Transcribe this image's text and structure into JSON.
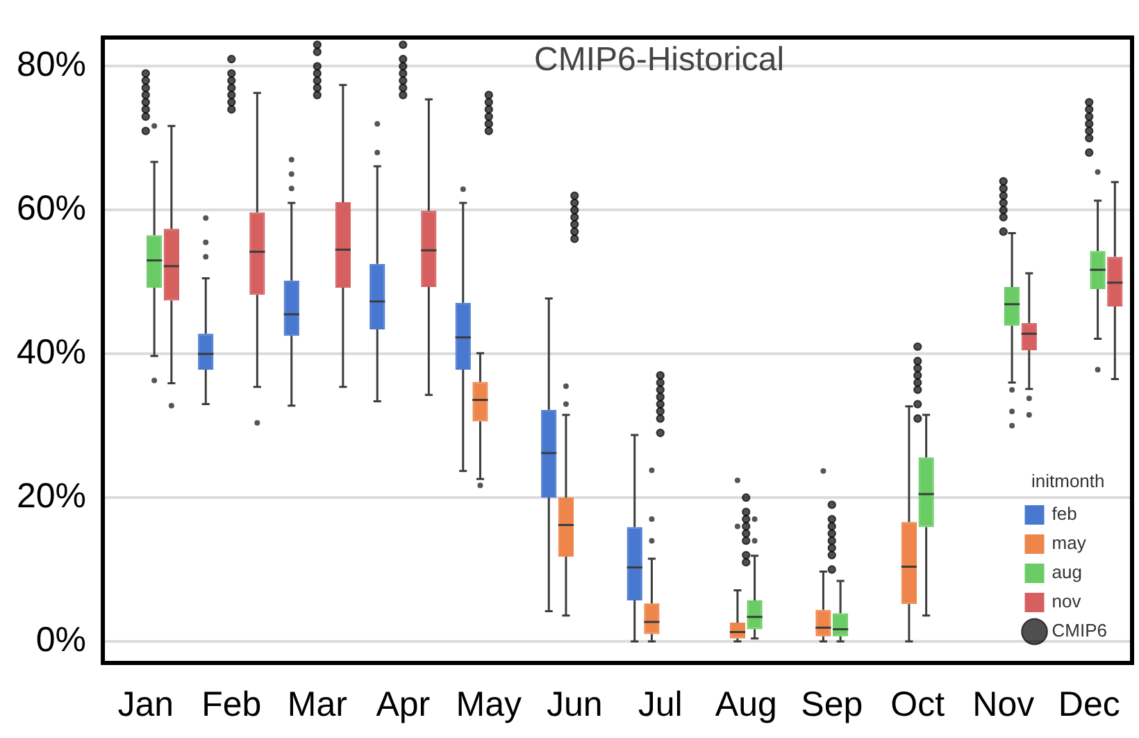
{
  "chart_data": {
    "type": "box",
    "title": "CMIP6-Historical",
    "legend_title": "initmonth",
    "legend": "bottom right",
    "grid": "y",
    "categories": [
      "Jan",
      "Feb",
      "Mar",
      "Apr",
      "May",
      "Jun",
      "Jul",
      "Aug",
      "Sep",
      "Oct",
      "Nov",
      "Dec"
    ],
    "ylim": [
      -3,
      84
    ],
    "yticks": [
      {
        "value": 0,
        "label": "0%"
      },
      {
        "value": 20,
        "label": "20%"
      },
      {
        "value": 40,
        "label": "40%"
      },
      {
        "value": 60,
        "label": "60%"
      },
      {
        "value": 80,
        "label": "80%"
      }
    ],
    "series": [
      {
        "name": "feb",
        "color": "#4878d0",
        "boxes": [
          null,
          {
            "low": 33,
            "q1": 37.8,
            "median": 40,
            "q3": 42.8,
            "high": 50.5,
            "outliers": [
              53.5,
              55.5,
              58.9
            ]
          },
          {
            "low": 32.8,
            "q1": 42.5,
            "median": 45.5,
            "q3": 50.2,
            "high": 61,
            "outliers": [
              63,
              65,
              67
            ]
          },
          {
            "low": 33.4,
            "q1": 43.4,
            "median": 47.3,
            "q3": 52.5,
            "high": 66.1,
            "outliers": [
              68,
              72
            ]
          },
          {
            "low": 23.7,
            "q1": 37.8,
            "median": 42.3,
            "q3": 47.1,
            "high": 61,
            "outliers": [
              62.9
            ]
          },
          {
            "low": 4.2,
            "q1": 20,
            "median": 26.2,
            "q3": 32.2,
            "high": 47.7
          },
          {
            "low": 0,
            "q1": 5.7,
            "median": 10.3,
            "q3": 15.9,
            "high": 28.7
          },
          null,
          null,
          null,
          null,
          null
        ]
      },
      {
        "name": "may",
        "color": "#ee854a",
        "boxes": [
          null,
          null,
          null,
          null,
          {
            "low": 22.6,
            "q1": 30.6,
            "median": 33.6,
            "q3": 36.1,
            "high": 40.1,
            "outliers": [
              21.7
            ]
          },
          {
            "low": 3.6,
            "q1": 11.8,
            "median": 16.2,
            "q3": 20,
            "high": 31.5,
            "outliers": [
              33,
              35.5
            ]
          },
          {
            "low": 0,
            "q1": 1,
            "median": 2.7,
            "q3": 5.3,
            "high": 11.5,
            "outliers": [
              14,
              17,
              23.8
            ]
          },
          {
            "low": 0,
            "q1": 0.4,
            "median": 1.3,
            "q3": 2.6,
            "high": 7.1,
            "outliers": [
              16,
              22.4
            ]
          },
          {
            "low": 0,
            "q1": 0.7,
            "median": 1.9,
            "q3": 4.4,
            "high": 9.7,
            "outliers": [
              23.7
            ]
          },
          {
            "low": 0,
            "q1": 5.2,
            "median": 10.4,
            "q3": 16.6,
            "high": 32.7
          },
          null,
          null
        ]
      },
      {
        "name": "aug",
        "color": "#6acc64",
        "boxes": [
          {
            "low": 39.7,
            "q1": 49.2,
            "median": 53,
            "q3": 56.5,
            "high": 66.7,
            "outliers": [
              36.3,
              71.7
            ]
          },
          null,
          null,
          null,
          null,
          null,
          null,
          {
            "low": 0.4,
            "q1": 1.7,
            "median": 3.4,
            "q3": 5.7,
            "high": 11.9,
            "outliers": [
              14,
              17
            ]
          },
          {
            "low": 0,
            "q1": 0.7,
            "median": 1.7,
            "q3": 3.9,
            "high": 8.4
          },
          {
            "low": 3.6,
            "q1": 15.9,
            "median": 20.5,
            "q3": 25.6,
            "high": 31.5
          },
          {
            "low": 36,
            "q1": 43.9,
            "median": 46.9,
            "q3": 49.3,
            "high": 56.8,
            "outliers": [
              30,
              32,
              35
            ]
          },
          {
            "low": 42.1,
            "q1": 49,
            "median": 51.7,
            "q3": 54.3,
            "high": 61.3,
            "outliers": [
              37.8,
              65.3
            ]
          }
        ]
      },
      {
        "name": "nov",
        "color": "#d65f5f",
        "boxes": [
          {
            "low": 35.9,
            "q1": 47.4,
            "median": 52.2,
            "q3": 57.4,
            "high": 71.7,
            "outliers": [
              32.8
            ]
          },
          {
            "low": 35.4,
            "q1": 48.2,
            "median": 54.2,
            "q3": 59.7,
            "high": 76.3,
            "outliers": [
              30.4
            ]
          },
          {
            "low": 35.4,
            "q1": 49.2,
            "median": 54.5,
            "q3": 61.1,
            "high": 77.4
          },
          {
            "low": 34.3,
            "q1": 49.3,
            "median": 54.4,
            "q3": 59.9,
            "high": 75.4
          },
          null,
          null,
          null,
          null,
          null,
          null,
          {
            "low": 35.1,
            "q1": 40.5,
            "median": 42.8,
            "q3": 44.3,
            "high": 51.2,
            "outliers": [
              31.5,
              33.8
            ]
          },
          {
            "low": 36.5,
            "q1": 46.6,
            "median": 49.9,
            "q3": 53.5,
            "high": 63.9
          }
        ]
      },
      {
        "type": "scatter",
        "name": "CMIP6",
        "color": "#000000",
        "x": [
          "Jan",
          "Jan",
          "Jan",
          "Jan",
          "Jan",
          "Jan",
          "Jan",
          "Jan",
          "Feb",
          "Feb",
          "Feb",
          "Feb",
          "Feb",
          "Feb",
          "Feb",
          "Mar",
          "Mar",
          "Mar",
          "Mar",
          "Mar",
          "Mar",
          "Mar",
          "Apr",
          "Apr",
          "Apr",
          "Apr",
          "Apr",
          "Apr",
          "Apr",
          "May",
          "May",
          "May",
          "May",
          "May",
          "May",
          "Jun",
          "Jun",
          "Jun",
          "Jun",
          "Jun",
          "Jun",
          "Jun",
          "Jul",
          "Jul",
          "Jul",
          "Jul",
          "Jul",
          "Jul",
          "Jul",
          "Jul",
          "Aug",
          "Aug",
          "Aug",
          "Aug",
          "Aug",
          "Aug",
          "Aug",
          "Aug",
          "Sep",
          "Sep",
          "Sep",
          "Sep",
          "Sep",
          "Sep",
          "Sep",
          "Sep",
          "Oct",
          "Oct",
          "Oct",
          "Oct",
          "Oct",
          "Oct",
          "Oct",
          "Oct",
          "Nov",
          "Nov",
          "Nov",
          "Nov",
          "Nov",
          "Nov",
          "Nov",
          "Dec",
          "Dec",
          "Dec",
          "Dec",
          "Dec",
          "Dec",
          "Dec"
        ],
        "values": [
          79,
          78,
          77,
          76,
          75,
          74,
          73,
          71,
          81,
          79,
          78,
          77,
          76,
          75,
          74,
          83,
          82,
          80,
          79,
          78,
          77,
          76,
          83,
          81,
          80,
          79,
          78,
          77,
          76,
          76,
          75,
          74,
          73,
          72,
          71,
          62,
          61,
          60,
          59,
          58,
          57,
          56,
          37,
          36,
          35,
          34,
          33,
          32,
          31,
          29,
          20,
          18,
          17,
          16,
          15,
          14,
          12,
          11,
          19,
          17,
          16,
          15,
          14,
          13,
          12,
          10,
          41,
          39,
          38,
          37,
          36,
          35,
          33,
          31,
          64,
          63,
          62,
          61,
          60,
          59,
          57,
          75,
          74,
          73,
          72,
          71,
          70,
          68
        ]
      }
    ]
  }
}
